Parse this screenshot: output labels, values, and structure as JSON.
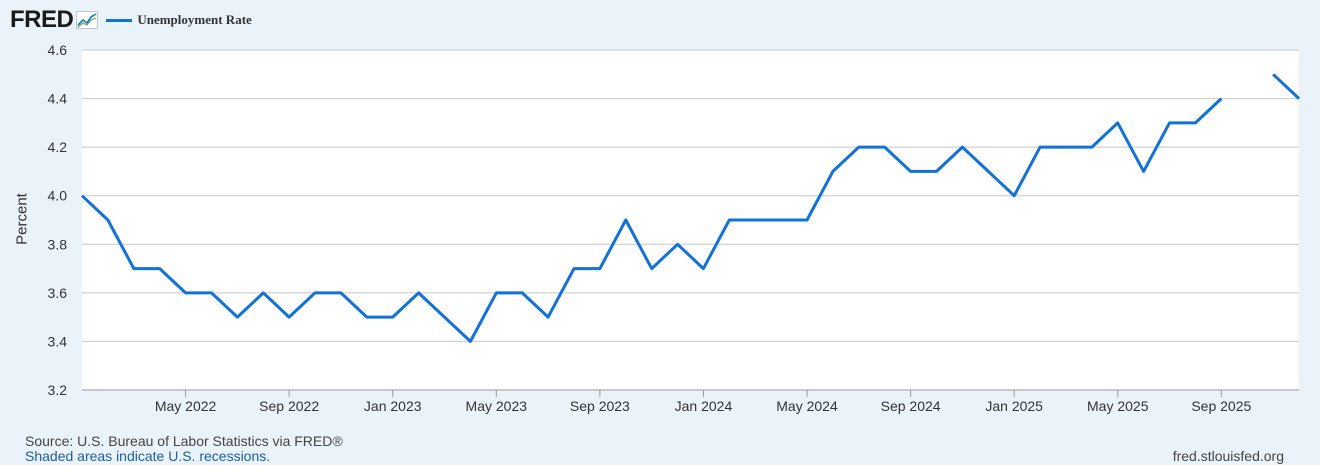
{
  "header": {
    "logo": "FRED",
    "logo_icon": "fred-chart-icon",
    "legend_label": "Unemployment Rate"
  },
  "footer": {
    "source": "Source: U.S. Bureau of Labor Statistics via FRED®",
    "note": "Shaded areas indicate U.S. recessions.",
    "url": "fred.stlouisfed.org"
  },
  "colors": {
    "line": "#1172d9",
    "grid": "#c8c8c8",
    "plot_bg": "#ffffff",
    "page_bg": "#eaf2fa"
  },
  "chart_data": {
    "type": "line",
    "title": "",
    "xlabel": "",
    "ylabel": "Percent",
    "ylim": [
      3.2,
      4.6
    ],
    "xlim": [
      "2022-01",
      "2025-12"
    ],
    "grid": true,
    "legend_position": "top-left",
    "yticks": [
      3.2,
      3.4,
      3.6,
      3.8,
      4.0,
      4.2,
      4.4,
      4.6
    ],
    "ytick_labels": [
      "3.2",
      "3.4",
      "3.6",
      "3.8",
      "4.0",
      "4.2",
      "4.4",
      "4.6"
    ],
    "xticks": [
      {
        "date": "2022-05",
        "label": "May 2022"
      },
      {
        "date": "2022-09",
        "label": "Sep 2022"
      },
      {
        "date": "2023-01",
        "label": "Jan 2023"
      },
      {
        "date": "2023-05",
        "label": "May 2023"
      },
      {
        "date": "2023-09",
        "label": "Sep 2023"
      },
      {
        "date": "2024-01",
        "label": "Jan 2024"
      },
      {
        "date": "2024-05",
        "label": "May 2024"
      },
      {
        "date": "2024-09",
        "label": "Sep 2024"
      },
      {
        "date": "2025-01",
        "label": "Jan 2025"
      },
      {
        "date": "2025-05",
        "label": "May 2025"
      },
      {
        "date": "2025-09",
        "label": "Sep 2025"
      }
    ],
    "series": [
      {
        "name": "Unemployment Rate",
        "x": [
          "2022-01",
          "2022-02",
          "2022-03",
          "2022-04",
          "2022-05",
          "2022-06",
          "2022-07",
          "2022-08",
          "2022-09",
          "2022-10",
          "2022-11",
          "2022-12",
          "2023-01",
          "2023-02",
          "2023-03",
          "2023-04",
          "2023-05",
          "2023-06",
          "2023-07",
          "2023-08",
          "2023-09",
          "2023-10",
          "2023-11",
          "2023-12",
          "2024-01",
          "2024-02",
          "2024-03",
          "2024-04",
          "2024-05",
          "2024-06",
          "2024-07",
          "2024-08",
          "2024-09",
          "2024-10",
          "2024-11",
          "2024-12",
          "2025-01",
          "2025-02",
          "2025-03",
          "2025-04",
          "2025-05",
          "2025-06",
          "2025-07",
          "2025-08",
          "2025-09",
          "2025-10",
          "2025-11",
          "2025-12"
        ],
        "values": [
          4.0,
          3.9,
          3.7,
          3.7,
          3.6,
          3.6,
          3.5,
          3.6,
          3.5,
          3.6,
          3.6,
          3.5,
          3.5,
          3.6,
          3.5,
          3.4,
          3.6,
          3.6,
          3.5,
          3.7,
          3.7,
          3.9,
          3.7,
          3.8,
          3.7,
          3.9,
          3.9,
          3.9,
          3.9,
          4.1,
          4.2,
          4.2,
          4.1,
          4.1,
          4.2,
          4.1,
          4.0,
          4.2,
          4.2,
          4.2,
          4.3,
          4.1,
          4.3,
          4.3,
          4.4,
          null,
          4.5,
          4.4
        ]
      }
    ]
  }
}
